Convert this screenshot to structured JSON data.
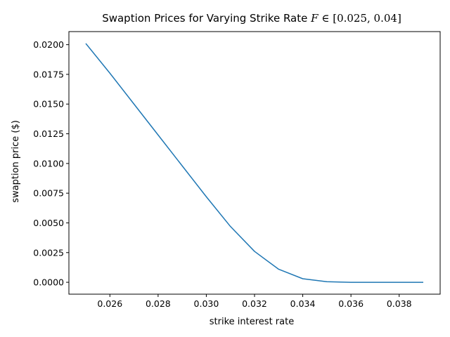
{
  "chart_data": {
    "type": "line",
    "title": "Swaption Prices for Varying Strike Rate",
    "title_math": {
      "symbol": "F",
      "relation": "∈",
      "interval": "[0.025, 0.04]"
    },
    "xlabel": "strike interest rate",
    "ylabel": "swaption price ($)",
    "xlim": [
      0.0243,
      0.0397
    ],
    "ylim": [
      -0.001,
      0.0211
    ],
    "xticks": [
      0.026,
      0.028,
      0.03,
      0.032,
      0.034,
      0.036,
      0.038
    ],
    "xtick_labels": [
      "0.026",
      "0.028",
      "0.030",
      "0.032",
      "0.034",
      "0.036",
      "0.038"
    ],
    "yticks": [
      0.0,
      0.0025,
      0.005,
      0.0075,
      0.01,
      0.0125,
      0.015,
      0.0175,
      0.02
    ],
    "ytick_labels": [
      "0.0000",
      "0.0025",
      "0.0050",
      "0.0075",
      "0.0100",
      "0.0125",
      "0.0150",
      "0.0175",
      "0.0200"
    ],
    "grid": false,
    "series": [
      {
        "color": "#1f77b4",
        "x": [
          0.025,
          0.026,
          0.027,
          0.028,
          0.029,
          0.03,
          0.031,
          0.032,
          0.033,
          0.034,
          0.035,
          0.036,
          0.037,
          0.038,
          0.039
        ],
        "y": [
          0.0201,
          0.0176,
          0.015,
          0.0124,
          0.0098,
          0.0072,
          0.0047,
          0.0026,
          0.0011,
          0.0003,
          5e-05,
          0.0,
          0.0,
          0.0,
          0.0
        ]
      }
    ]
  }
}
